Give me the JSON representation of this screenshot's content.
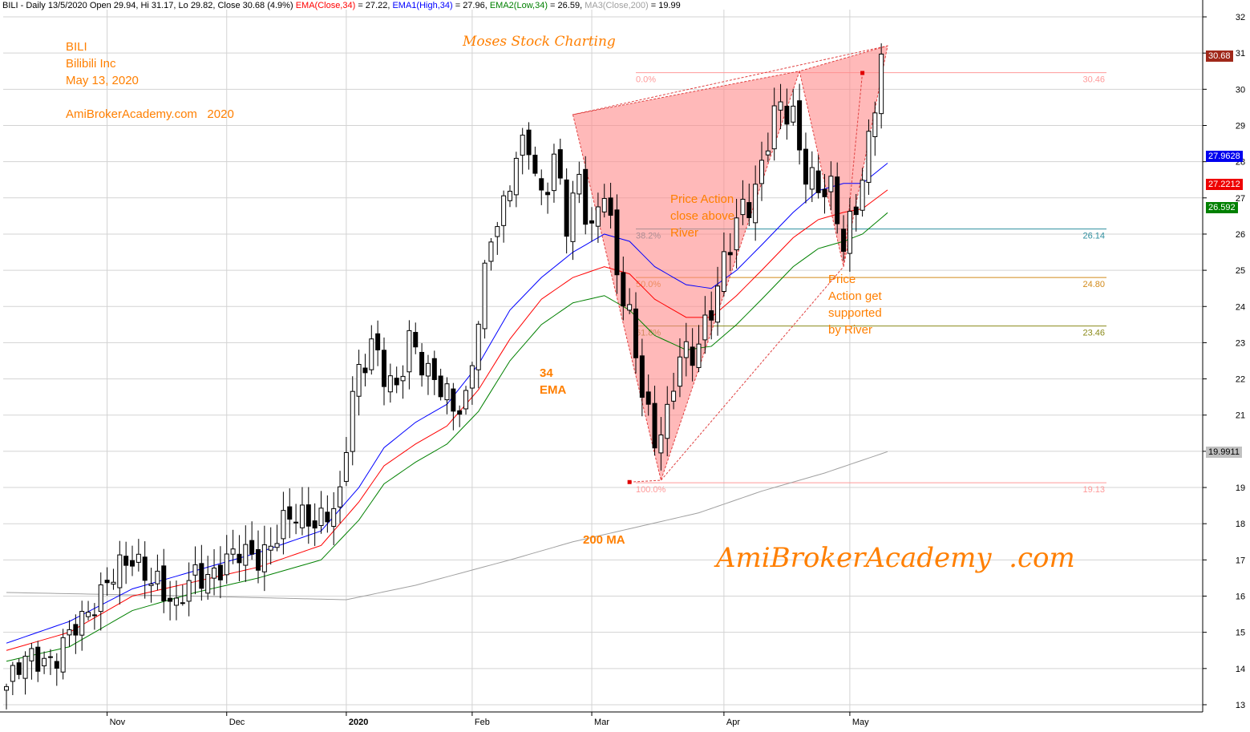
{
  "header": {
    "symbol_info": "BILI - Daily 13/5/2020 Open 29.94, Hi 31.17, Lo 29.82, Close 30.68 (4.9%)",
    "ema_label": "EMA(Close,34)",
    "ema_value": " = 27.22, ",
    "ema1_label": "EMA1(High,34)",
    "ema1_value": " = 27.96, ",
    "ema2_label": "EMA2(Low,34)",
    "ema2_value": " = 26.59, ",
    "ma3_label": "MA3(Close,200)",
    "ma3_value": " = 19.99"
  },
  "annotations": {
    "ticker": "BILI",
    "company": "Bilibili Inc",
    "date": "May 13, 2020",
    "site_year": "AmiBrokerAcademy.com   2020",
    "watermark_top": "Moses Stock Charting",
    "watermark_main": "AmiBrokerAcademy  .com",
    "price_action_above": [
      "Price Action",
      "close above",
      "River"
    ],
    "price_action_supported": [
      "Price",
      "Action get",
      "supported",
      "by River"
    ],
    "ema_note": [
      "34",
      "EMA"
    ],
    "ma_note": "200 MA"
  },
  "price_tags": {
    "close": "30.68",
    "ema_high": "27.9628",
    "ema_close": "27.2212",
    "ema_low": "26.592",
    "ma200": "19.9911"
  },
  "colors": {
    "annotation": "#ff7f00",
    "ema_close": "#ff0000",
    "ema_high": "#0000ff",
    "ema_low": "#008000",
    "ma200": "#a0a0a0",
    "pattern_fill": "#ff8a8a",
    "fib_level": "#ff9a9a",
    "grid": "#d3d3d3"
  },
  "chart_data": {
    "type": "candlestick",
    "title": "BILI - Daily",
    "x_axis_labels": [
      "Nov",
      "Dec",
      "2020",
      "Feb",
      "Mar",
      "Apr",
      "May"
    ],
    "y_axis_ticks": [
      13,
      14,
      15,
      16,
      17,
      18,
      19,
      20,
      21,
      22,
      23,
      24,
      25,
      26,
      27,
      28,
      29,
      30,
      31,
      32
    ],
    "y_axis_tick_labels": [
      "13",
      "14",
      "15",
      "16",
      "17",
      "18",
      "19",
      "",
      "21",
      "22",
      "23",
      "24",
      "25",
      "26",
      "27",
      "28",
      "29",
      "30",
      "31",
      "32"
    ],
    "ylim": [
      12.8,
      32.2
    ],
    "grid": true,
    "bars_total": 140,
    "month_start_bar": [
      16,
      35,
      54,
      74,
      93,
      114,
      134
    ],
    "fib_levels": [
      {
        "pct": "0.0%",
        "value": 30.46,
        "label": "30.46",
        "color": "#ff9a9a"
      },
      {
        "pct": "38.2%",
        "value": 26.14,
        "label": "26.14",
        "color": "#2f8f9f"
      },
      {
        "pct": "50.0%",
        "value": 24.8,
        "label": "24.80",
        "color": "#d28a1a"
      },
      {
        "pct": "61.8%",
        "value": 23.46,
        "label": "23.46",
        "color": "#8a8a1a"
      },
      {
        "pct": "100.0%",
        "value": 19.13,
        "label": "19.13",
        "color": "#ff9a9a"
      }
    ],
    "pattern_points": [
      [
        90,
        29.3
      ],
      [
        104,
        19.2
      ],
      [
        126,
        30.5
      ],
      [
        133,
        25.1
      ],
      [
        140,
        31.2
      ]
    ],
    "pattern_markers": [
      [
        99,
        19.15
      ],
      [
        136,
        30.45
      ]
    ],
    "close_series_anchors": [
      [
        0,
        13.5
      ],
      [
        4,
        14.3
      ],
      [
        8,
        14.4
      ],
      [
        12,
        15.2
      ],
      [
        16,
        16.6
      ],
      [
        20,
        16.8
      ],
      [
        24,
        16.6
      ],
      [
        27,
        15.5
      ],
      [
        30,
        16.6
      ],
      [
        35,
        16.9
      ],
      [
        40,
        17.2
      ],
      [
        44,
        17.9
      ],
      [
        48,
        18.2
      ],
      [
        53,
        18.5
      ],
      [
        55,
        21.5
      ],
      [
        58,
        23.3
      ],
      [
        60,
        22.2
      ],
      [
        62,
        21.4
      ],
      [
        64,
        23.0
      ],
      [
        66,
        22.7
      ],
      [
        69,
        21.8
      ],
      [
        71,
        20.9
      ],
      [
        73,
        21.3
      ],
      [
        75,
        24.0
      ],
      [
        77,
        26.1
      ],
      [
        79,
        26.4
      ],
      [
        81,
        28.0
      ],
      [
        83,
        28.8
      ],
      [
        85,
        27.1
      ],
      [
        87,
        27.9
      ],
      [
        89,
        26.1
      ],
      [
        91,
        27.6
      ],
      [
        93,
        26.3
      ],
      [
        95,
        27.3
      ],
      [
        97,
        24.6
      ],
      [
        99,
        23.7
      ],
      [
        101,
        22.0
      ],
      [
        103,
        20.3
      ],
      [
        105,
        20.7
      ],
      [
        107,
        22.6
      ],
      [
        109,
        22.9
      ],
      [
        111,
        23.6
      ],
      [
        113,
        24.3
      ],
      [
        115,
        25.6
      ],
      [
        117,
        26.9
      ],
      [
        119,
        27.4
      ],
      [
        121,
        28.6
      ],
      [
        123,
        29.3
      ],
      [
        125,
        29.2
      ],
      [
        127,
        28.0
      ],
      [
        129,
        27.3
      ],
      [
        131,
        26.9
      ],
      [
        133,
        25.6
      ],
      [
        135,
        27.1
      ],
      [
        137,
        28.6
      ],
      [
        139,
        30.7
      ]
    ],
    "ema_high_anchors": [
      [
        0,
        14.7
      ],
      [
        10,
        15.3
      ],
      [
        20,
        16.2
      ],
      [
        30,
        16.7
      ],
      [
        40,
        17.2
      ],
      [
        50,
        17.8
      ],
      [
        56,
        19.0
      ],
      [
        60,
        20.1
      ],
      [
        65,
        20.8
      ],
      [
        70,
        21.3
      ],
      [
        75,
        22.4
      ],
      [
        80,
        23.9
      ],
      [
        85,
        24.8
      ],
      [
        90,
        25.5
      ],
      [
        95,
        26.0
      ],
      [
        99,
        25.8
      ],
      [
        103,
        25.1
      ],
      [
        108,
        24.6
      ],
      [
        112,
        24.5
      ],
      [
        116,
        25.0
      ],
      [
        120,
        25.7
      ],
      [
        125,
        26.6
      ],
      [
        129,
        27.2
      ],
      [
        133,
        27.4
      ],
      [
        136,
        27.4
      ],
      [
        140,
        27.96
      ]
    ],
    "ema_close_anchors": [
      [
        0,
        14.5
      ],
      [
        10,
        15.0
      ],
      [
        20,
        16.0
      ],
      [
        30,
        16.4
      ],
      [
        40,
        16.8
      ],
      [
        50,
        17.4
      ],
      [
        56,
        18.6
      ],
      [
        60,
        19.6
      ],
      [
        65,
        20.2
      ],
      [
        70,
        20.7
      ],
      [
        75,
        21.7
      ],
      [
        80,
        23.1
      ],
      [
        85,
        24.2
      ],
      [
        90,
        24.8
      ],
      [
        95,
        25.1
      ],
      [
        99,
        24.9
      ],
      [
        103,
        24.2
      ],
      [
        108,
        23.7
      ],
      [
        112,
        23.7
      ],
      [
        116,
        24.3
      ],
      [
        120,
        25.0
      ],
      [
        125,
        25.9
      ],
      [
        129,
        26.4
      ],
      [
        133,
        26.6
      ],
      [
        136,
        26.7
      ],
      [
        140,
        27.22
      ]
    ],
    "ema_low_anchors": [
      [
        0,
        14.2
      ],
      [
        10,
        14.6
      ],
      [
        20,
        15.6
      ],
      [
        30,
        16.1
      ],
      [
        40,
        16.5
      ],
      [
        50,
        17.0
      ],
      [
        56,
        18.1
      ],
      [
        60,
        19.1
      ],
      [
        65,
        19.7
      ],
      [
        70,
        20.2
      ],
      [
        75,
        21.1
      ],
      [
        80,
        22.5
      ],
      [
        85,
        23.5
      ],
      [
        90,
        24.1
      ],
      [
        95,
        24.3
      ],
      [
        99,
        23.9
      ],
      [
        103,
        23.2
      ],
      [
        108,
        22.8
      ],
      [
        112,
        22.9
      ],
      [
        116,
        23.5
      ],
      [
        120,
        24.2
      ],
      [
        125,
        25.1
      ],
      [
        129,
        25.6
      ],
      [
        133,
        25.8
      ],
      [
        136,
        26.0
      ],
      [
        140,
        26.59
      ]
    ],
    "ma200_anchors": [
      [
        0,
        16.1
      ],
      [
        30,
        16.0
      ],
      [
        54,
        15.9
      ],
      [
        65,
        16.3
      ],
      [
        80,
        17.0
      ],
      [
        90,
        17.5
      ],
      [
        100,
        17.9
      ],
      [
        110,
        18.3
      ],
      [
        120,
        18.9
      ],
      [
        130,
        19.4
      ],
      [
        140,
        19.99
      ]
    ]
  }
}
